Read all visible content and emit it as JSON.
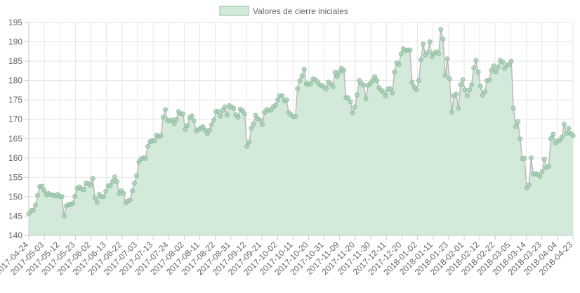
{
  "chart_data": {
    "type": "area",
    "legend_position": "top",
    "grid": true,
    "ylim": [
      140,
      195
    ],
    "y_ticks": [
      140,
      145,
      150,
      155,
      160,
      165,
      170,
      175,
      180,
      185,
      190,
      195
    ],
    "x_tick_labels": [
      "2017-04-24",
      "2017-05-03",
      "2017-05-12",
      "2017-05-23",
      "2017-06-02",
      "2017-06-13",
      "2017-06-22",
      "2017-07-03",
      "2017-07-13",
      "2017-07-24",
      "2017-08-02",
      "2017-08-11",
      "2017-08-22",
      "2017-08-31",
      "2017-09-12",
      "2017-09-21",
      "2017-10-02",
      "2017-10-11",
      "2017-10-20",
      "2017-10-31",
      "2017-11-09",
      "2017-11-20",
      "2017-11-30",
      "2017-12-11",
      "2017-12-20",
      "2018-01-02",
      "2018-01-11",
      "2018-01-23",
      "2018-02-01",
      "2018-02-12",
      "2018-02-22",
      "2018-03-05",
      "2018-03-14",
      "2018-03-23",
      "2018-04-04",
      "2018-04-23"
    ],
    "series": [
      {
        "name": "Valores de cierre iniciales",
        "color": "#8fbf9f",
        "fill": "#d3eadb",
        "values": [
          145.6,
          146.4,
          146.5,
          147.8,
          150.3,
          152.6,
          152.7,
          151.6,
          150.5,
          150.8,
          150.5,
          150.4,
          150.2,
          150.6,
          150.1,
          150.0,
          145.0,
          147.6,
          147.9,
          148.0,
          148.3,
          150.1,
          152.1,
          152.5,
          152.0,
          151.8,
          153.5,
          153.4,
          153.0,
          154.7,
          149.7,
          148.5,
          150.6,
          150.0,
          150.0,
          151.4,
          152.8,
          152.8,
          153.9,
          155.1,
          153.9,
          150.8,
          151.5,
          150.8,
          148.4,
          148.9,
          149.1,
          151.5,
          153.5,
          155.4,
          159.0,
          159.8,
          160.0,
          159.9,
          163.0,
          164.2,
          164.4,
          164.4,
          165.9,
          165.5,
          165.8,
          170.5,
          172.5,
          169.7,
          169.6,
          169.8,
          168.9,
          170.0,
          172.0,
          171.4,
          171.4,
          167.4,
          168.4,
          170.4,
          170.9,
          169.6,
          167.0,
          167.3,
          167.7,
          168.1,
          167.2,
          166.3,
          167.2,
          168.6,
          169.8,
          172.0,
          172.0,
          170.8,
          172.3,
          173.2,
          171.1,
          173.5,
          173.2,
          172.8,
          171.1,
          170.5,
          172.6,
          172.2,
          171.4,
          163.0,
          164.1,
          167.7,
          168.8,
          171.0,
          170.1,
          169.8,
          168.6,
          171.8,
          172.5,
          172.3,
          172.4,
          173.2,
          173.6,
          175.0,
          176.1,
          176.0,
          174.7,
          175.0,
          171.7,
          171.2,
          170.7,
          170.7,
          177.9,
          180.0,
          181.2,
          182.9,
          179.2,
          179.0,
          179.2,
          180.4,
          180.2,
          179.7,
          178.9,
          178.7,
          178.3,
          177.8,
          179.6,
          179.1,
          178.4,
          182.1,
          181.1,
          182.2,
          183.1,
          182.6,
          175.6,
          175.5,
          174.5,
          171.6,
          173.2,
          176.3,
          180.0,
          179.2,
          178.8,
          175.3,
          178.8,
          179.2,
          180.0,
          181.0,
          180.0,
          178.1,
          177.5,
          177.0,
          176.0,
          177.8,
          177.9,
          176.8,
          182.2,
          184.6,
          184.2,
          186.9,
          188.2,
          187.7,
          187.9,
          187.9,
          179.5,
          178.3,
          177.6,
          180.0,
          185.4,
          189.4,
          186.6,
          187.3,
          190.0,
          186.2,
          187.1,
          187.4,
          186.9,
          193.2,
          190.7,
          181.3,
          185.6,
          180.5,
          171.8,
          176.1,
          176.5,
          172.8,
          178.9,
          180.2,
          177.6,
          176.1,
          177.6,
          178.9,
          183.3,
          185.2,
          182.2,
          178.5,
          176.2,
          177.1,
          180.0,
          180.1,
          182.6,
          183.8,
          182.3,
          183.5,
          185.2,
          184.8,
          183.1,
          184.0,
          184.1,
          185.0,
          172.8,
          168.1,
          169.4,
          164.9,
          159.8,
          159.9,
          152.3,
          153.0,
          160.0,
          155.8,
          155.9,
          155.7,
          155.2,
          156.4,
          159.7,
          157.5,
          157.9,
          165.0,
          166.1,
          163.9,
          164.3,
          164.6,
          165.4,
          168.7,
          166.3,
          167.7,
          166.3,
          165.8
        ]
      }
    ]
  }
}
